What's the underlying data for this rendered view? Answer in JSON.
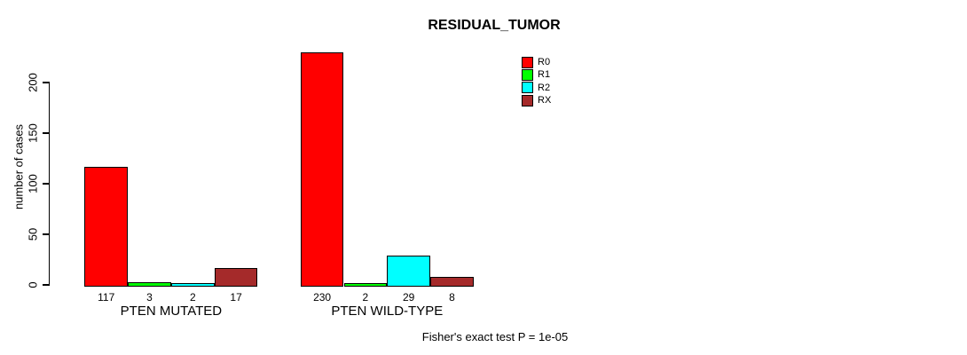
{
  "chart_data": {
    "type": "bar",
    "title": "RESIDUAL_TUMOR",
    "ylabel": "number of cases",
    "xlabel": "",
    "ylim": [
      0,
      235
    ],
    "yticks": [
      0,
      50,
      100,
      150,
      200
    ],
    "categories": [
      "PTEN MUTATED",
      "PTEN WILD-TYPE"
    ],
    "series": [
      {
        "name": "R0",
        "color": "#FF0000",
        "values": [
          117,
          230
        ]
      },
      {
        "name": "R1",
        "color": "#00FF00",
        "values": [
          3,
          2
        ]
      },
      {
        "name": "R2",
        "color": "#00FFFF",
        "values": [
          2,
          29
        ]
      },
      {
        "name": "RX",
        "color": "#A52A2A",
        "values": [
          17,
          8
        ]
      }
    ],
    "bar_value_labels": [
      [
        "117",
        "3",
        "2",
        "17"
      ],
      [
        "230",
        "2",
        "29",
        "8"
      ]
    ],
    "legend_position": "top-right",
    "legend_entries": [
      "R0",
      "R1",
      "R2",
      "RX"
    ],
    "annotation": "Fisher's exact test P = 1e-05",
    "grid": false,
    "background_color": "#FFFFFF",
    "axis_color": "#000000"
  }
}
